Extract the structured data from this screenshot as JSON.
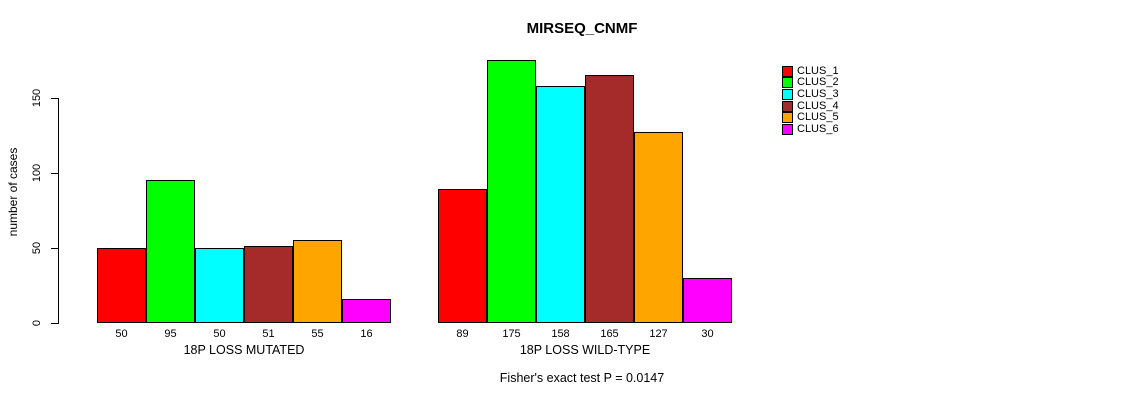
{
  "chart_data": {
    "type": "bar",
    "title": "MIRSEQ_CNMF",
    "ylabel": "number of cases",
    "xlabel": "",
    "ylim": [
      0,
      175
    ],
    "yticks": [
      0,
      50,
      100,
      150
    ],
    "grid": false,
    "legend_position": "right",
    "series_names": [
      "CLUS_1",
      "CLUS_2",
      "CLUS_3",
      "CLUS_4",
      "CLUS_5",
      "CLUS_6"
    ],
    "series_colors": [
      "#FF0000",
      "#00FF00",
      "#00FFFF",
      "#A52A2A",
      "#FFA500",
      "#FF00FF"
    ],
    "groups": [
      {
        "label": "18P LOSS MUTATED",
        "values": [
          50,
          95,
          50,
          51,
          55,
          16
        ]
      },
      {
        "label": "18P LOSS WILD-TYPE",
        "values": [
          89,
          175,
          158,
          165,
          127,
          30
        ]
      }
    ],
    "annotation": "Fisher's exact test P = 0.0147",
    "axis_color": "#000000",
    "background_color": "#FFFFFF"
  }
}
